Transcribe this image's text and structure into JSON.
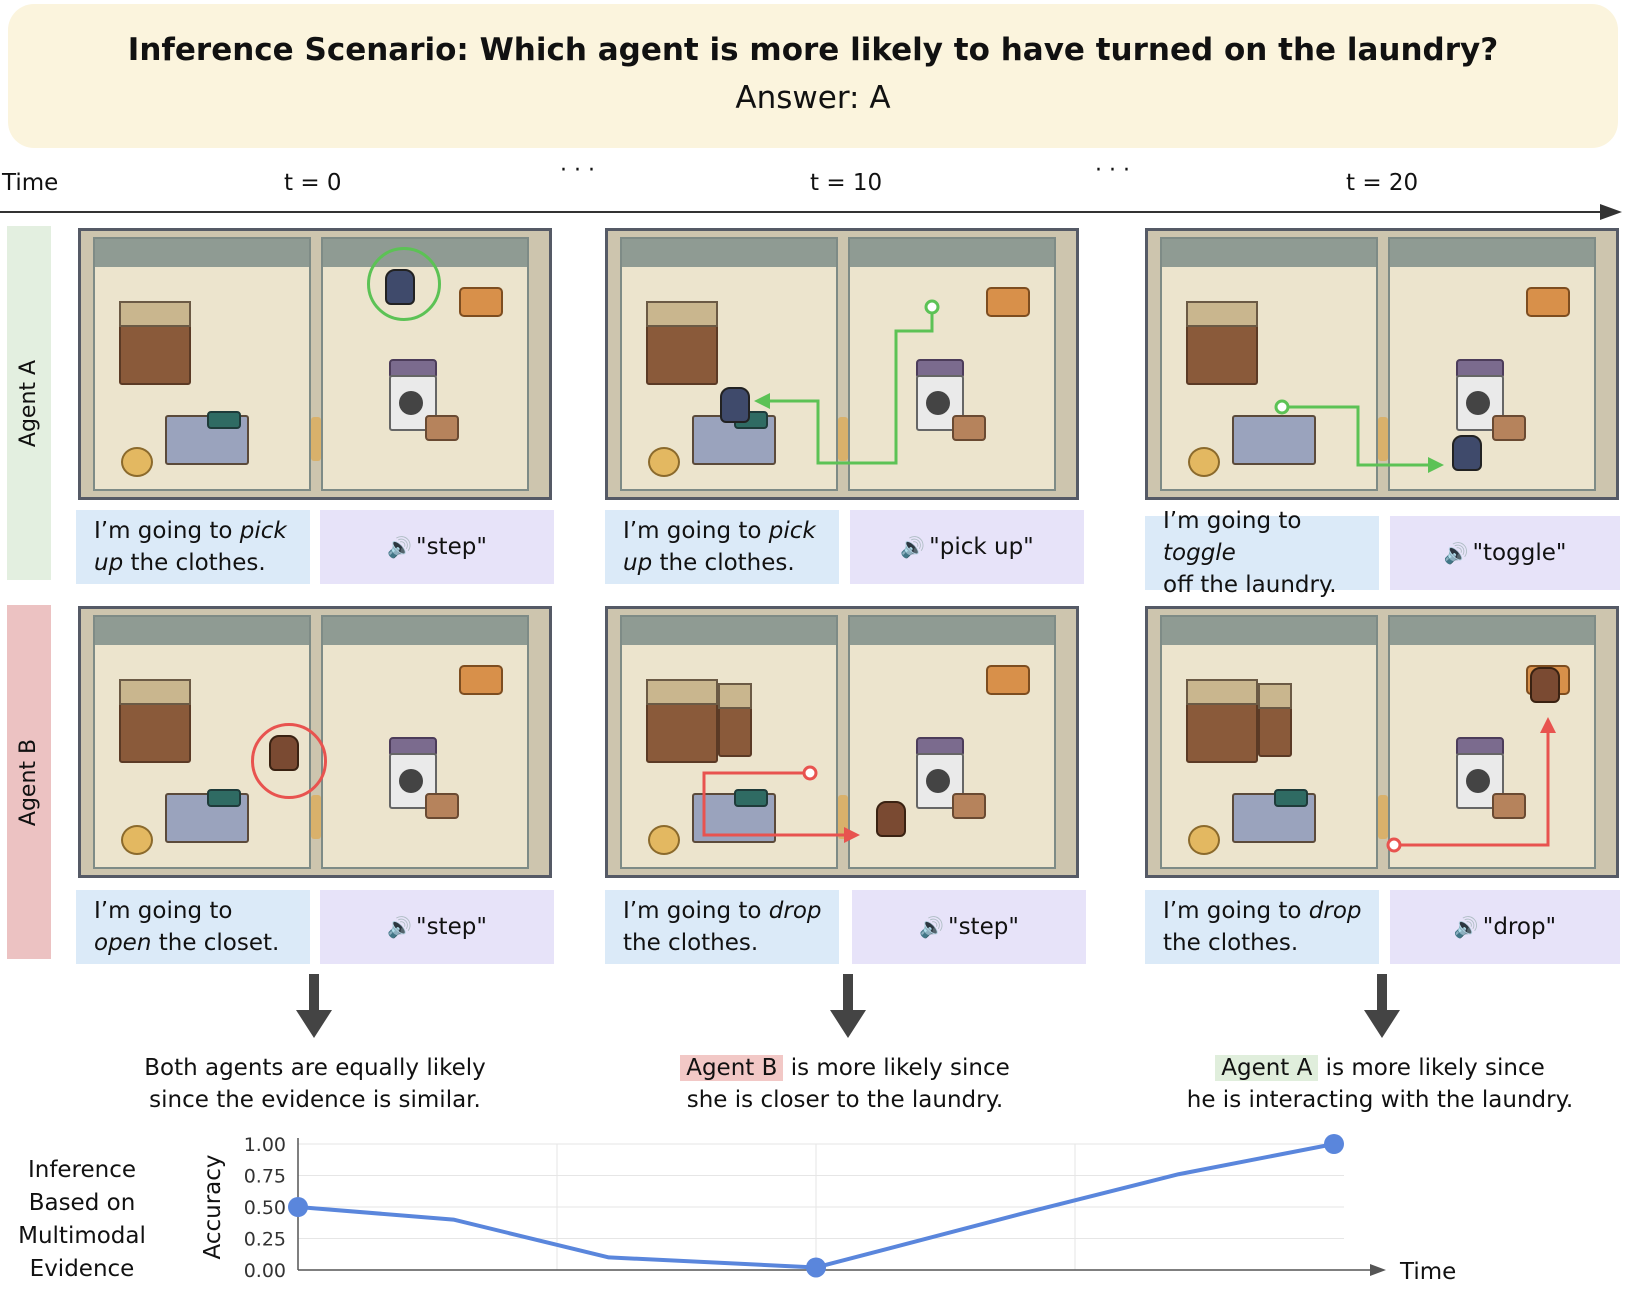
{
  "title": {
    "question": "Inference Scenario: Which agent is more likely to have turned on the laundry?",
    "answer": "Answer: A"
  },
  "timeline": {
    "label": "Time",
    "ticks": [
      "t = 0",
      "t = 10",
      "t = 20"
    ],
    "ellipsis": "· · ·"
  },
  "agents": {
    "a": {
      "label": "Agent A",
      "color": "#e3efe0"
    },
    "b": {
      "label": "Agent B",
      "color": "#ecc2c2"
    }
  },
  "steps": [
    {
      "a_plan": {
        "pre": "I’m going to ",
        "em": "pick",
        "line2_em": "up",
        "line2": " the clothes."
      },
      "a_action": "\"step\"",
      "b_plan": {
        "pre": "I’m going to",
        "em": "",
        "line2_em": "open",
        "line2": " the closet."
      },
      "b_action": "\"step\"",
      "conclusion": {
        "highlight": "",
        "line1": "Both agents are equally likely",
        "line2": "since the evidence is similar."
      }
    },
    {
      "a_plan": {
        "pre": "I’m going to ",
        "em": "pick",
        "line2_em": "up",
        "line2": " the clothes."
      },
      "a_action": "\"pick up\"",
      "b_plan": {
        "pre": "I’m going to ",
        "em": "drop",
        "line2_em": "",
        "line2": "the clothes."
      },
      "b_action": "\"step\"",
      "conclusion": {
        "highlight": "Agent B",
        "line1": " is more likely since",
        "line2": "she is closer to the laundry."
      }
    },
    {
      "a_plan": {
        "pre": "I’m going to ",
        "em": "toggle",
        "line2_em": "",
        "line2": "off the laundry."
      },
      "a_action": "\"toggle\"",
      "b_plan": {
        "pre": "I’m going to ",
        "em": "drop",
        "line2_em": "",
        "line2": "the clothes."
      },
      "b_action": "\"drop\"",
      "conclusion": {
        "highlight": "Agent A",
        "line1": " is more likely since",
        "line2": "he is interacting with the laundry."
      }
    }
  ],
  "colors": {
    "path_a": "#5cc255",
    "path_b": "#e8534f",
    "ring_a": "#5cc255",
    "ring_b": "#e8534f",
    "line": "#5a86dc"
  },
  "side_label": [
    "Inference",
    "Based on",
    "Multimodal",
    "Evidence"
  ],
  "chart_data": {
    "type": "line",
    "title": "",
    "xlabel": "Time",
    "ylabel": "Accuracy",
    "ylim": [
      0,
      1
    ],
    "yticks": [
      "0.00",
      "0.25",
      "0.50",
      "0.75",
      "1.00"
    ],
    "x": [
      0,
      3,
      6,
      10,
      14,
      17,
      20
    ],
    "values": [
      0.5,
      0.4,
      0.1,
      0.02,
      0.45,
      0.76,
      1.0
    ],
    "markers_at": [
      0,
      10,
      20
    ],
    "grid": true
  }
}
